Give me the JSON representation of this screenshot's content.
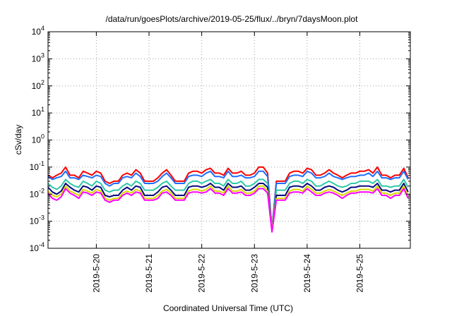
{
  "chart_data": {
    "type": "line",
    "title": "/data/run/goesPlots/archive/2019-05-25/flux/../bryn/7daysMoon.plot",
    "xlabel": "Coordinated Universal Time (UTC)",
    "ylabel": "cSv/day",
    "y_scale": "log",
    "ylim": [
      0.0001,
      10000
    ],
    "xlim": [
      "2019-05-19 02:00",
      "2019-05-25 23:00"
    ],
    "grid": true,
    "legend": "none",
    "y_ticks": [
      {
        "base": "10",
        "exp": "-4",
        "value": 0.0001
      },
      {
        "base": "10",
        "exp": "-3",
        "value": 0.001
      },
      {
        "base": "10",
        "exp": "-2",
        "value": 0.01
      },
      {
        "base": "10",
        "exp": "-1",
        "value": 0.1
      },
      {
        "base": "10",
        "exp": "0",
        "value": 1
      },
      {
        "base": "10",
        "exp": "1",
        "value": 10
      },
      {
        "base": "10",
        "exp": "2",
        "value": 100
      },
      {
        "base": "10",
        "exp": "3",
        "value": 1000
      },
      {
        "base": "10",
        "exp": "4",
        "value": 10000
      }
    ],
    "x_ticks": [
      {
        "label": "2019-5-20",
        "value": "2019-05-20 00:00"
      },
      {
        "label": "2019-5-21",
        "value": "2019-05-21 00:00"
      },
      {
        "label": "2019-5-22",
        "value": "2019-05-22 00:00"
      },
      {
        "label": "2019-5-23",
        "value": "2019-05-23 00:00"
      },
      {
        "label": "2019-5-24",
        "value": "2019-05-24 00:00"
      },
      {
        "label": "2019-5-25",
        "value": "2019-05-25 00:00"
      }
    ],
    "x": [
      "2019-05-19 02:00",
      "2019-05-19 04:00",
      "2019-05-19 06:00",
      "2019-05-19 08:00",
      "2019-05-19 10:00",
      "2019-05-19 12:00",
      "2019-05-19 14:00",
      "2019-05-19 16:00",
      "2019-05-19 18:00",
      "2019-05-19 20:00",
      "2019-05-19 22:00",
      "2019-05-20 00:00",
      "2019-05-20 02:00",
      "2019-05-20 04:00",
      "2019-05-20 06:00",
      "2019-05-20 08:00",
      "2019-05-20 10:00",
      "2019-05-20 12:00",
      "2019-05-20 14:00",
      "2019-05-20 16:00",
      "2019-05-20 18:00",
      "2019-05-20 20:00",
      "2019-05-20 22:00",
      "2019-05-21 00:00",
      "2019-05-21 02:00",
      "2019-05-21 04:00",
      "2019-05-21 06:00",
      "2019-05-21 08:00",
      "2019-05-21 10:00",
      "2019-05-21 12:00",
      "2019-05-21 14:00",
      "2019-05-21 16:00",
      "2019-05-21 18:00",
      "2019-05-21 20:00",
      "2019-05-21 22:00",
      "2019-05-22 00:00",
      "2019-05-22 02:00",
      "2019-05-22 04:00",
      "2019-05-22 06:00",
      "2019-05-22 08:00",
      "2019-05-22 10:00",
      "2019-05-22 12:00",
      "2019-05-22 14:00",
      "2019-05-22 16:00",
      "2019-05-22 18:00",
      "2019-05-22 20:00",
      "2019-05-22 22:00",
      "2019-05-23 00:00",
      "2019-05-23 02:00",
      "2019-05-23 04:00",
      "2019-05-23 06:00",
      "2019-05-23 08:00",
      "2019-05-23 10:00",
      "2019-05-23 12:00",
      "2019-05-23 14:00",
      "2019-05-23 16:00",
      "2019-05-23 18:00",
      "2019-05-23 20:00",
      "2019-05-23 22:00",
      "2019-05-24 00:00",
      "2019-05-24 02:00",
      "2019-05-24 04:00",
      "2019-05-24 06:00",
      "2019-05-24 08:00",
      "2019-05-24 10:00",
      "2019-05-24 12:00",
      "2019-05-24 14:00",
      "2019-05-24 16:00",
      "2019-05-24 18:00",
      "2019-05-24 20:00",
      "2019-05-24 22:00",
      "2019-05-25 00:00",
      "2019-05-25 02:00",
      "2019-05-25 04:00",
      "2019-05-25 06:00",
      "2019-05-25 08:00",
      "2019-05-25 10:00",
      "2019-05-25 12:00",
      "2019-05-25 14:00",
      "2019-05-25 16:00",
      "2019-05-25 18:00",
      "2019-05-25 20:00",
      "2019-05-25 22:00"
    ],
    "series": [
      {
        "color": "#ff0000",
        "values": [
          0.05,
          0.04,
          0.05,
          0.06,
          0.1,
          0.05,
          0.05,
          0.04,
          0.07,
          0.06,
          0.05,
          0.07,
          0.06,
          0.03,
          0.025,
          0.03,
          0.03,
          0.05,
          0.06,
          0.05,
          0.08,
          0.06,
          0.03,
          0.03,
          0.03,
          0.04,
          0.06,
          0.08,
          0.05,
          0.03,
          0.03,
          0.03,
          0.06,
          0.07,
          0.07,
          0.06,
          0.08,
          0.09,
          0.06,
          0.06,
          0.05,
          0.09,
          0.06,
          0.06,
          0.07,
          0.05,
          0.05,
          0.06,
          0.1,
          0.1,
          0.06,
          0.0005,
          0.03,
          0.03,
          0.03,
          0.06,
          0.07,
          0.07,
          0.06,
          0.09,
          0.08,
          0.05,
          0.05,
          0.06,
          0.08,
          0.06,
          0.05,
          0.04,
          0.05,
          0.06,
          0.06,
          0.07,
          0.07,
          0.08,
          0.06,
          0.1,
          0.05,
          0.05,
          0.04,
          0.05,
          0.05,
          0.09,
          0.04
        ]
      },
      {
        "color": "#1f6fff",
        "values": [
          0.045,
          0.035,
          0.04,
          0.045,
          0.07,
          0.04,
          0.04,
          0.035,
          0.05,
          0.045,
          0.04,
          0.05,
          0.045,
          0.025,
          0.02,
          0.025,
          0.025,
          0.04,
          0.045,
          0.04,
          0.06,
          0.045,
          0.025,
          0.025,
          0.025,
          0.03,
          0.045,
          0.06,
          0.04,
          0.025,
          0.025,
          0.025,
          0.045,
          0.05,
          0.05,
          0.045,
          0.06,
          0.07,
          0.045,
          0.045,
          0.04,
          0.07,
          0.045,
          0.045,
          0.05,
          0.04,
          0.04,
          0.045,
          0.07,
          0.07,
          0.045,
          0.0005,
          0.025,
          0.025,
          0.025,
          0.045,
          0.05,
          0.05,
          0.045,
          0.07,
          0.06,
          0.04,
          0.04,
          0.045,
          0.06,
          0.045,
          0.04,
          0.035,
          0.04,
          0.045,
          0.045,
          0.05,
          0.05,
          0.06,
          0.045,
          0.07,
          0.04,
          0.04,
          0.035,
          0.04,
          0.04,
          0.07,
          0.035
        ]
      },
      {
        "color": "#2ec8a8",
        "values": [
          0.025,
          0.018,
          0.015,
          0.02,
          0.035,
          0.025,
          0.02,
          0.018,
          0.03,
          0.025,
          0.02,
          0.03,
          0.025,
          0.014,
          0.012,
          0.014,
          0.014,
          0.02,
          0.025,
          0.02,
          0.03,
          0.025,
          0.014,
          0.014,
          0.014,
          0.018,
          0.025,
          0.03,
          0.02,
          0.014,
          0.014,
          0.014,
          0.025,
          0.03,
          0.03,
          0.025,
          0.03,
          0.035,
          0.025,
          0.025,
          0.02,
          0.035,
          0.025,
          0.025,
          0.03,
          0.02,
          0.02,
          0.025,
          0.035,
          0.035,
          0.025,
          0.0005,
          0.014,
          0.014,
          0.014,
          0.025,
          0.03,
          0.03,
          0.025,
          0.035,
          0.03,
          0.02,
          0.02,
          0.025,
          0.03,
          0.025,
          0.02,
          0.018,
          0.02,
          0.025,
          0.025,
          0.03,
          0.03,
          0.03,
          0.025,
          0.035,
          0.02,
          0.02,
          0.018,
          0.02,
          0.02,
          0.035,
          0.018
        ]
      },
      {
        "color": "#0a0a80",
        "values": [
          0.018,
          0.012,
          0.01,
          0.013,
          0.025,
          0.018,
          0.014,
          0.012,
          0.02,
          0.018,
          0.014,
          0.02,
          0.018,
          0.009,
          0.008,
          0.009,
          0.009,
          0.014,
          0.018,
          0.014,
          0.02,
          0.018,
          0.009,
          0.009,
          0.009,
          0.012,
          0.018,
          0.02,
          0.014,
          0.009,
          0.009,
          0.009,
          0.018,
          0.02,
          0.02,
          0.018,
          0.02,
          0.025,
          0.018,
          0.018,
          0.014,
          0.025,
          0.018,
          0.018,
          0.02,
          0.014,
          0.014,
          0.018,
          0.025,
          0.025,
          0.018,
          0.0005,
          0.009,
          0.009,
          0.009,
          0.018,
          0.02,
          0.02,
          0.018,
          0.025,
          0.02,
          0.014,
          0.014,
          0.018,
          0.02,
          0.018,
          0.014,
          0.012,
          0.014,
          0.018,
          0.018,
          0.02,
          0.02,
          0.02,
          0.018,
          0.025,
          0.014,
          0.014,
          0.012,
          0.014,
          0.014,
          0.025,
          0.012
        ]
      },
      {
        "color": "#d8d800",
        "values": [
          0.013,
          0.009,
          0.008,
          0.01,
          0.02,
          0.013,
          0.011,
          0.009,
          0.015,
          0.013,
          0.011,
          0.015,
          0.013,
          0.007,
          0.006,
          0.007,
          0.007,
          0.011,
          0.013,
          0.011,
          0.015,
          0.013,
          0.007,
          0.007,
          0.007,
          0.009,
          0.013,
          0.015,
          0.011,
          0.007,
          0.007,
          0.007,
          0.013,
          0.015,
          0.015,
          0.013,
          0.015,
          0.02,
          0.013,
          0.013,
          0.011,
          0.02,
          0.013,
          0.013,
          0.015,
          0.011,
          0.011,
          0.013,
          0.02,
          0.02,
          0.013,
          0.0005,
          0.007,
          0.007,
          0.007,
          0.013,
          0.015,
          0.015,
          0.013,
          0.02,
          0.015,
          0.011,
          0.011,
          0.013,
          0.015,
          0.013,
          0.011,
          0.009,
          0.011,
          0.013,
          0.013,
          0.015,
          0.015,
          0.015,
          0.013,
          0.02,
          0.011,
          0.011,
          0.009,
          0.011,
          0.011,
          0.02,
          0.009
        ]
      },
      {
        "color": "#ff00ff",
        "values": [
          0.011,
          0.007,
          0.006,
          0.008,
          0.016,
          0.011,
          0.009,
          0.007,
          0.012,
          0.011,
          0.009,
          0.012,
          0.011,
          0.006,
          0.005,
          0.006,
          0.006,
          0.009,
          0.011,
          0.009,
          0.012,
          0.011,
          0.006,
          0.006,
          0.006,
          0.007,
          0.011,
          0.012,
          0.009,
          0.006,
          0.006,
          0.006,
          0.011,
          0.012,
          0.012,
          0.011,
          0.012,
          0.016,
          0.011,
          0.011,
          0.009,
          0.016,
          0.011,
          0.011,
          0.012,
          0.009,
          0.009,
          0.011,
          0.016,
          0.016,
          0.011,
          0.0004,
          0.006,
          0.006,
          0.006,
          0.011,
          0.012,
          0.012,
          0.011,
          0.016,
          0.012,
          0.009,
          0.009,
          0.011,
          0.012,
          0.011,
          0.009,
          0.007,
          0.009,
          0.011,
          0.011,
          0.012,
          0.012,
          0.012,
          0.011,
          0.016,
          0.009,
          0.009,
          0.007,
          0.009,
          0.009,
          0.016,
          0.007
        ]
      }
    ]
  }
}
